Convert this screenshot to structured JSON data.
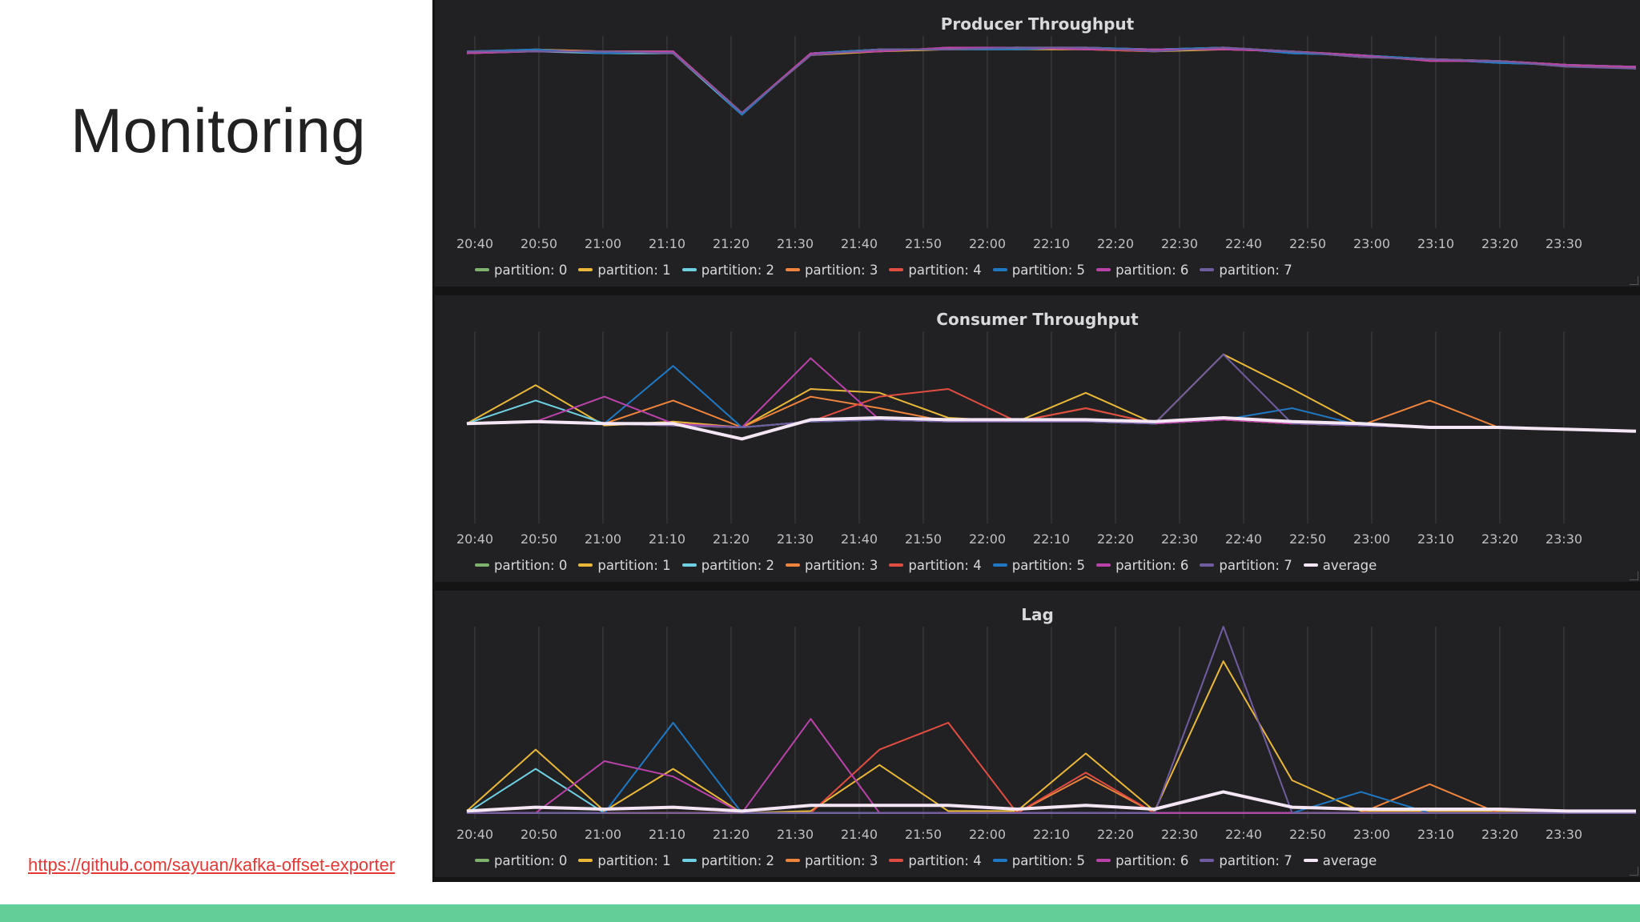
{
  "slide": {
    "title": "Monitoring",
    "link": "https://github.com/sayuan/kafka-offset-exporter",
    "accent_color": "#63cf98",
    "link_color": "#e53935"
  },
  "time_labels": [
    "20:40",
    "20:50",
    "21:00",
    "21:10",
    "21:20",
    "21:30",
    "21:40",
    "21:50",
    "22:00",
    "22:10",
    "22:20",
    "22:30",
    "22:40",
    "22:50",
    "23:00",
    "23:10",
    "23:20",
    "23:30"
  ],
  "series_colors": {
    "partition: 0": "#7eb26d",
    "partition: 1": "#eab839",
    "partition: 2": "#6ed0e0",
    "partition: 3": "#ef843c",
    "partition: 4": "#e24d42",
    "partition: 5": "#1f78c1",
    "partition: 6": "#ba43a9",
    "partition: 7": "#705da0",
    "average": "#f5e6f5"
  },
  "panels": [
    {
      "title": "Producer Throughput",
      "legend": [
        "partition: 0",
        "partition: 1",
        "partition: 2",
        "partition: 3",
        "partition: 4",
        "partition: 5",
        "partition: 6",
        "partition: 7"
      ]
    },
    {
      "title": "Consumer Throughput",
      "legend": [
        "partition: 0",
        "partition: 1",
        "partition: 2",
        "partition: 3",
        "partition: 4",
        "partition: 5",
        "partition: 6",
        "partition: 7",
        "average"
      ]
    },
    {
      "title": "Lag",
      "legend": [
        "partition: 0",
        "partition: 1",
        "partition: 2",
        "partition: 3",
        "partition: 4",
        "partition: 5",
        "partition: 6",
        "partition: 7",
        "average"
      ]
    }
  ],
  "chart_data": [
    {
      "type": "line",
      "title": "Producer Throughput",
      "x": [
        "20:40",
        "20:50",
        "21:00",
        "21:10",
        "21:20",
        "21:30",
        "21:40",
        "21:50",
        "22:00",
        "22:10",
        "22:20",
        "22:30",
        "22:40",
        "22:50",
        "23:00",
        "23:10",
        "23:20",
        "23:30"
      ],
      "ylim": [
        0,
        100
      ],
      "grid": true,
      "legend_position": "bottom",
      "series": [
        {
          "name": "partition: 0",
          "values": [
            92,
            93,
            92,
            92,
            60,
            91,
            93,
            93,
            94,
            94,
            93,
            94,
            92,
            90,
            88,
            87,
            85,
            84
          ]
        },
        {
          "name": "partition: 1",
          "values": [
            91,
            92,
            92,
            92,
            60,
            90,
            92,
            93,
            93,
            93,
            92,
            93,
            92,
            89,
            88,
            87,
            85,
            84
          ]
        },
        {
          "name": "partition: 2",
          "values": [
            92,
            92,
            91,
            91,
            59,
            91,
            93,
            93,
            94,
            93,
            93,
            94,
            91,
            90,
            88,
            86,
            85,
            83
          ]
        },
        {
          "name": "partition: 3",
          "values": [
            91,
            93,
            92,
            92,
            60,
            91,
            92,
            94,
            93,
            94,
            93,
            93,
            92,
            90,
            87,
            87,
            84,
            84
          ]
        },
        {
          "name": "partition: 4",
          "values": [
            92,
            92,
            92,
            91,
            60,
            90,
            93,
            93,
            94,
            93,
            92,
            94,
            92,
            89,
            88,
            87,
            85,
            83
          ]
        },
        {
          "name": "partition: 5",
          "values": [
            92,
            93,
            91,
            92,
            59,
            91,
            93,
            93,
            93,
            94,
            93,
            94,
            91,
            90,
            88,
            86,
            85,
            84
          ]
        },
        {
          "name": "partition: 6",
          "values": [
            91,
            92,
            92,
            92,
            60,
            91,
            92,
            94,
            94,
            93,
            93,
            93,
            92,
            90,
            87,
            87,
            85,
            84
          ]
        },
        {
          "name": "partition: 7",
          "values": [
            92,
            92,
            92,
            91,
            60,
            90,
            93,
            93,
            94,
            94,
            92,
            94,
            92,
            89,
            88,
            87,
            84,
            83
          ]
        }
      ]
    },
    {
      "type": "line",
      "title": "Consumer Throughput",
      "x": [
        "20:40",
        "20:50",
        "21:00",
        "21:10",
        "21:20",
        "21:30",
        "21:40",
        "21:50",
        "22:00",
        "22:10",
        "22:20",
        "22:30",
        "22:40",
        "22:50",
        "23:00",
        "23:10",
        "23:20",
        "23:30"
      ],
      "ylim": [
        0,
        100
      ],
      "grid": true,
      "legend_position": "bottom",
      "series": [
        {
          "name": "partition: 0",
          "values": [
            52,
            53,
            52,
            51,
            50,
            53,
            54,
            53,
            53,
            53,
            52,
            54,
            52,
            51,
            50,
            50,
            49,
            48
          ]
        },
        {
          "name": "partition: 1",
          "values": [
            52,
            72,
            51,
            53,
            50,
            70,
            68,
            55,
            53,
            68,
            52,
            88,
            70,
            51,
            50,
            50,
            49,
            48
          ]
        },
        {
          "name": "partition: 2",
          "values": [
            52,
            64,
            52,
            51,
            50,
            53,
            54,
            53,
            53,
            53,
            52,
            54,
            52,
            51,
            50,
            50,
            49,
            48
          ]
        },
        {
          "name": "partition: 3",
          "values": [
            52,
            53,
            52,
            64,
            50,
            66,
            60,
            53,
            53,
            60,
            52,
            54,
            52,
            51,
            64,
            50,
            49,
            48
          ]
        },
        {
          "name": "partition: 4",
          "values": [
            52,
            53,
            52,
            51,
            50,
            53,
            66,
            70,
            53,
            60,
            52,
            54,
            52,
            51,
            50,
            50,
            49,
            48
          ]
        },
        {
          "name": "partition: 5",
          "values": [
            52,
            53,
            52,
            82,
            50,
            53,
            54,
            53,
            53,
            53,
            52,
            54,
            60,
            51,
            50,
            50,
            49,
            48
          ]
        },
        {
          "name": "partition: 6",
          "values": [
            52,
            53,
            66,
            52,
            50,
            86,
            54,
            53,
            53,
            53,
            52,
            54,
            52,
            51,
            50,
            50,
            49,
            48
          ]
        },
        {
          "name": "partition: 7",
          "values": [
            52,
            53,
            52,
            51,
            50,
            53,
            54,
            53,
            53,
            53,
            52,
            88,
            52,
            51,
            50,
            50,
            49,
            48
          ]
        },
        {
          "name": "average",
          "values": [
            52,
            53,
            52,
            52,
            44,
            54,
            55,
            54,
            54,
            54,
            53,
            55,
            53,
            52,
            50,
            50,
            49,
            48
          ]
        }
      ]
    },
    {
      "type": "line",
      "title": "Lag",
      "x": [
        "20:40",
        "20:50",
        "21:00",
        "21:10",
        "21:20",
        "21:30",
        "21:40",
        "21:50",
        "22:00",
        "22:10",
        "22:20",
        "22:30",
        "22:40",
        "22:50",
        "23:00",
        "23:10",
        "23:20",
        "23:30"
      ],
      "ylim": [
        0,
        100
      ],
      "grid": true,
      "legend_position": "bottom",
      "series": [
        {
          "name": "partition: 0",
          "values": [
            3,
            3,
            3,
            3,
            3,
            3,
            3,
            3,
            3,
            3,
            3,
            3,
            3,
            3,
            3,
            3,
            3,
            3
          ]
        },
        {
          "name": "partition: 1",
          "values": [
            4,
            36,
            4,
            26,
            3,
            4,
            28,
            4,
            4,
            34,
            4,
            82,
            20,
            4,
            4,
            4,
            4,
            4
          ]
        },
        {
          "name": "partition: 2",
          "values": [
            3,
            26,
            3,
            3,
            3,
            3,
            3,
            3,
            3,
            3,
            3,
            3,
            3,
            3,
            3,
            3,
            3,
            3
          ]
        },
        {
          "name": "partition: 3",
          "values": [
            3,
            3,
            3,
            3,
            3,
            3,
            3,
            3,
            3,
            22,
            3,
            3,
            3,
            3,
            18,
            3,
            3,
            3
          ]
        },
        {
          "name": "partition: 4",
          "values": [
            3,
            3,
            3,
            3,
            3,
            3,
            36,
            50,
            3,
            24,
            3,
            3,
            3,
            3,
            3,
            3,
            3,
            3
          ]
        },
        {
          "name": "partition: 5",
          "values": [
            3,
            3,
            3,
            50,
            3,
            3,
            3,
            3,
            3,
            3,
            3,
            3,
            3,
            14,
            3,
            3,
            3,
            3
          ]
        },
        {
          "name": "partition: 6",
          "values": [
            3,
            3,
            30,
            22,
            3,
            52,
            3,
            3,
            3,
            3,
            3,
            3,
            3,
            3,
            3,
            3,
            3,
            3
          ]
        },
        {
          "name": "partition: 7",
          "values": [
            3,
            3,
            3,
            3,
            3,
            3,
            3,
            3,
            3,
            3,
            3,
            100,
            3,
            3,
            3,
            3,
            3,
            3
          ]
        },
        {
          "name": "average",
          "values": [
            4,
            6,
            5,
            6,
            4,
            7,
            7,
            7,
            5,
            7,
            5,
            14,
            6,
            5,
            5,
            5,
            4,
            4
          ]
        }
      ]
    }
  ]
}
